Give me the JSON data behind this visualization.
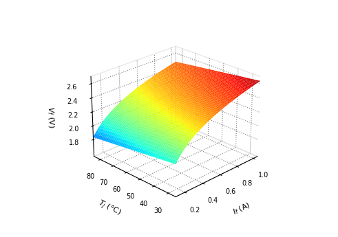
{
  "T_ticks": [
    30,
    40,
    50,
    60,
    70,
    80
  ],
  "I_ticks": [
    0.2,
    0.4,
    0.6,
    0.8,
    1.0
  ],
  "V_ticks": [
    1.8,
    2.0,
    2.2,
    2.4,
    2.6
  ],
  "xlabel": "$I_f$ (A)",
  "ylabel": "$T_j$ (°C)",
  "zlabel": "$V_f$ (V)",
  "elev": 25,
  "azim": -135,
  "T_min": 25,
  "T_max": 85,
  "I_min": 0.1,
  "I_max": 1.05,
  "zlim_min": 1.55,
  "zlim_max": 2.7,
  "V0": 1.65,
  "a_log": 0.32,
  "I0": 0.05,
  "b_T": -0.0028,
  "T0": 25,
  "cmap": "jet",
  "vmin": 1.55,
  "vmax": 2.7,
  "figsize": [
    4.91,
    3.45
  ],
  "dpi": 100
}
